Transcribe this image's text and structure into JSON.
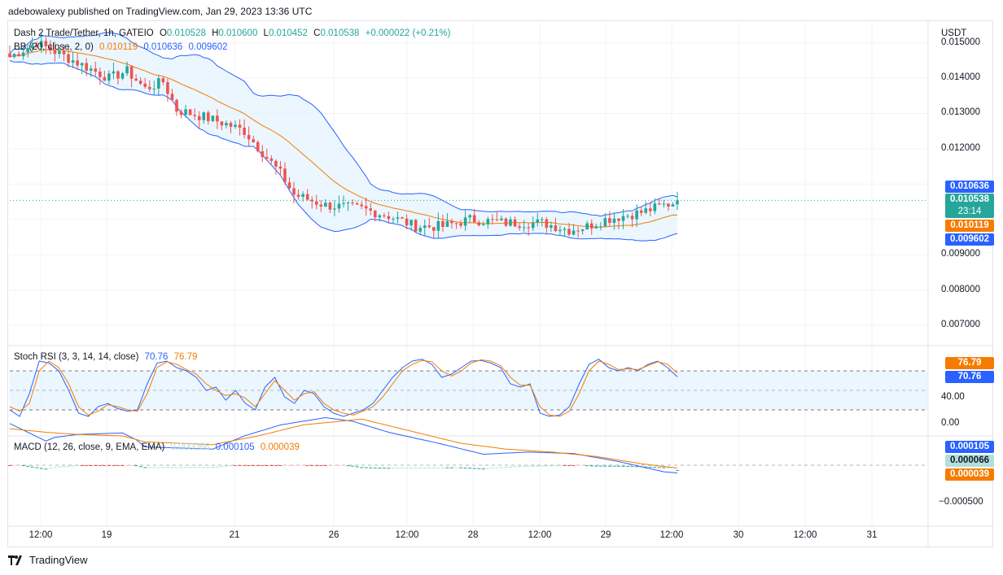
{
  "header": {
    "published_by": "adebowalexy published on TradingView.com, Jan 29, 2023 13:36 UTC"
  },
  "footer": {
    "brand": "TradingView"
  },
  "colors": {
    "up": "#26a69a",
    "down": "#ef5350",
    "blue": "#2962ff",
    "orange": "#f57c00",
    "bb_fill": "#e3f2fd"
  },
  "legend": {
    "symbol": "Dash 2 Trade/Tether, 1h, GATEIO",
    "o_label": "O",
    "o": "0.010528",
    "h_label": "H",
    "h": "0.010600",
    "l_label": "L",
    "l": "0.010452",
    "c_label": "C",
    "c": "0.010538",
    "change": "+0.000022 (+0.21%)",
    "bb_label": "BB (20, close, 2, 0)",
    "bb_basis": "0.010119",
    "bb_upper": "0.010636",
    "bb_lower": "0.009602",
    "stoch_label": "Stoch RSI (3, 3, 14, 14, close)",
    "stoch_k": "70.76",
    "stoch_d": "76.79",
    "macd_label": "MACD (12, 26, close, 9, EMA, EMA)",
    "macd_hist": "0.000066",
    "macd_line": "0.000105",
    "macd_signal": "0.000039"
  },
  "price_axis": {
    "currency": "USDT",
    "ticks": [
      "0.015000",
      "0.014000",
      "0.013000",
      "0.012000",
      "0.009000",
      "0.008000",
      "0.007000"
    ]
  },
  "price_tags": {
    "upper": "0.010636",
    "last": "0.010538",
    "countdown": "23:14",
    "basis": "0.010119",
    "lower": "0.009602"
  },
  "stoch_axis": {
    "ticks": [
      "40.00",
      "0.00"
    ],
    "tag_d": "76.79",
    "tag_k": "70.76"
  },
  "macd_axis": {
    "ticks": [
      "−0.000500"
    ],
    "tag_line": "0.000105",
    "tag_hist": "0.000066",
    "tag_signal": "0.000039"
  },
  "time_axis": {
    "ticks": [
      "12:00",
      "19",
      "21",
      "26",
      "12:00",
      "28",
      "12:00",
      "29",
      "12:00",
      "30",
      "12:00",
      "31"
    ]
  },
  "chart_data": [
    {
      "type": "candlestick",
      "title": "Dash 2 Trade/Tether, 1h, GATEIO",
      "ylabel": "USDT",
      "ylim": [
        0.0065,
        0.0155
      ],
      "last": 0.010538,
      "path": [
        [
          0,
          0.0146
        ],
        [
          6,
          0.015
        ],
        [
          14,
          0.0145
        ],
        [
          22,
          0.014
        ],
        [
          26,
          0.0142
        ],
        [
          30,
          0.0137
        ],
        [
          34,
          0.0139
        ],
        [
          37,
          0.0131
        ],
        [
          43,
          0.0129
        ],
        [
          48,
          0.0127
        ],
        [
          52,
          0.0125
        ],
        [
          60,
          0.0113
        ],
        [
          63,
          0.0107
        ],
        [
          70,
          0.0104
        ],
        [
          78,
          0.0103
        ],
        [
          84,
          0.0101
        ],
        [
          90,
          0.0098
        ],
        [
          96,
          0.0098
        ],
        [
          102,
          0.01
        ],
        [
          110,
          0.0099
        ],
        [
          118,
          0.0099
        ],
        [
          124,
          0.0097
        ],
        [
          128,
          0.0098
        ],
        [
          132,
          0.01
        ],
        [
          140,
          0.0102
        ],
        [
          145,
          0.0104
        ],
        [
          148,
          0.0105
        ]
      ],
      "bb": {
        "upper_last": 0.010636,
        "basis_last": 0.010119,
        "lower_last": 0.009602
      }
    },
    {
      "type": "line",
      "title": "Stoch RSI (3, 3, 14, 14, close)",
      "ylim": [
        -10,
        110
      ],
      "bands": [
        20,
        50,
        80
      ],
      "series": [
        {
          "name": "K",
          "color": "#2962ff",
          "values": [
            20,
            10,
            45,
            95,
            92,
            80,
            50,
            15,
            10,
            25,
            30,
            22,
            18,
            20,
            60,
            92,
            95,
            85,
            80,
            70,
            50,
            55,
            35,
            50,
            30,
            20,
            55,
            70,
            40,
            30,
            50,
            45,
            25,
            15,
            10,
            15,
            20,
            30,
            50,
            70,
            85,
            95,
            98,
            90,
            70,
            75,
            85,
            95,
            96,
            92,
            85,
            60,
            55,
            60,
            15,
            10,
            12,
            25,
            60,
            90,
            98,
            85,
            80,
            85,
            80,
            90,
            95,
            85,
            70.76
          ]
        },
        {
          "name": "D",
          "color": "#f57c00",
          "values": [
            25,
            18,
            30,
            80,
            95,
            85,
            60,
            25,
            12,
            18,
            28,
            25,
            20,
            18,
            45,
            85,
            94,
            90,
            82,
            75,
            60,
            50,
            42,
            45,
            38,
            25,
            45,
            65,
            50,
            35,
            45,
            48,
            30,
            20,
            15,
            12,
            18,
            25,
            40,
            60,
            80,
            90,
            96,
            94,
            80,
            72,
            80,
            92,
            97,
            95,
            88,
            70,
            58,
            58,
            25,
            12,
            10,
            18,
            45,
            80,
            95,
            90,
            82,
            83,
            82,
            88,
            94,
            90,
            76.79
          ]
        }
      ]
    },
    {
      "type": "line",
      "title": "MACD (12, 26, close, 9, EMA, EMA)",
      "ylim": [
        -0.0008,
        0.00025
      ],
      "last_line": 0.000105,
      "last_hist": 6.6e-05,
      "last_signal": 3.9e-05,
      "line_path": [
        [
          0,
          -0.00057
        ],
        [
          4,
          -0.00045
        ],
        [
          8,
          -0.00033
        ],
        [
          10,
          -0.00038
        ],
        [
          15,
          -0.00042
        ],
        [
          25,
          -0.00044
        ],
        [
          28,
          -0.00035
        ],
        [
          30,
          -0.00025
        ],
        [
          45,
          -0.00022
        ],
        [
          52,
          -0.0004
        ],
        [
          60,
          -0.00055
        ],
        [
          70,
          -0.00065
        ],
        [
          76,
          -0.0006
        ],
        [
          84,
          -0.00045
        ],
        [
          95,
          -0.0003
        ],
        [
          105,
          -0.00015
        ],
        [
          115,
          -0.00018
        ],
        [
          125,
          -0.00016
        ],
        [
          135,
          -5e-05
        ],
        [
          145,
          9e-05
        ],
        [
          148,
          0.000105
        ]
      ],
      "signal_path": [
        [
          0,
          -0.0005
        ],
        [
          8,
          -0.00045
        ],
        [
          15,
          -0.00042
        ],
        [
          25,
          -0.0004
        ],
        [
          30,
          -0.00032
        ],
        [
          45,
          -0.00028
        ],
        [
          55,
          -0.0004
        ],
        [
          65,
          -0.00055
        ],
        [
          78,
          -0.00063
        ],
        [
          90,
          -0.00045
        ],
        [
          100,
          -0.0003
        ],
        [
          110,
          -0.00022
        ],
        [
          120,
          -0.00018
        ],
        [
          130,
          -0.00012
        ],
        [
          140,
          -2e-05
        ],
        [
          148,
          3.9e-05
        ]
      ]
    }
  ]
}
